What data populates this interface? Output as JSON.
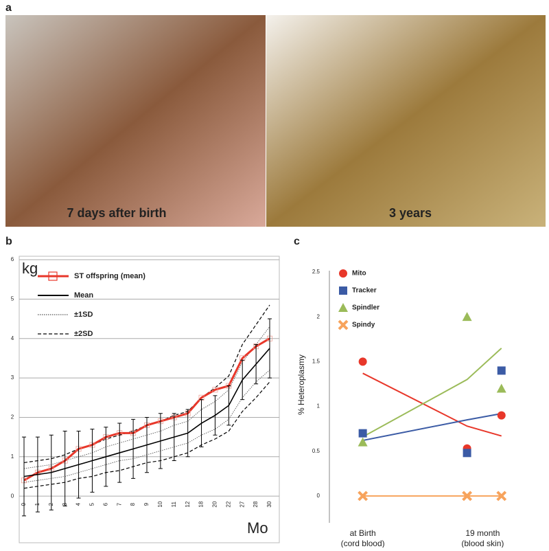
{
  "panel_labels": [
    "a",
    "b",
    "c"
  ],
  "photos": [
    {
      "caption": "7 days after birth"
    },
    {
      "caption": "3 years"
    }
  ],
  "chart_data": [
    {
      "type": "line",
      "ylabel": "kg",
      "xlabel": "Mo",
      "legend": "upper left",
      "grid": true,
      "categories": [
        "0",
        "1",
        "2",
        "3",
        "4",
        "5",
        "6",
        "7",
        "8",
        "9",
        "10",
        "11",
        "12",
        "18",
        "20",
        "22",
        "27",
        "28",
        "30"
      ],
      "ylim": [
        -1.2,
        6
      ],
      "yticks": [
        0,
        1,
        2,
        3,
        4,
        5,
        6
      ],
      "series": [
        {
          "name": "ST offspring (mean)",
          "color": "#e8372a",
          "marker": "square",
          "values": [
            0.4,
            0.6,
            0.7,
            0.9,
            1.2,
            1.3,
            1.5,
            1.6,
            1.6,
            1.8,
            1.9,
            2.0,
            2.1,
            2.5,
            2.7,
            2.8,
            3.5,
            3.8,
            4.0
          ]
        },
        {
          "name": "Mean",
          "color": "#000000",
          "values": [
            0.5,
            0.55,
            0.6,
            0.7,
            0.8,
            0.9,
            1.0,
            1.1,
            1.2,
            1.3,
            1.4,
            1.5,
            1.6,
            1.85,
            2.05,
            2.3,
            2.95,
            3.35,
            3.75
          ],
          "errors": [
            1.0,
            0.95,
            0.95,
            0.95,
            0.85,
            0.8,
            0.75,
            0.75,
            0.75,
            0.7,
            0.7,
            0.6,
            0.6,
            0.6,
            0.5,
            0.5,
            0.5,
            0.5,
            0.75
          ]
        },
        {
          "name": "±1SD",
          "color": "#555555",
          "style": "dotted",
          "upper": [
            0.7,
            0.75,
            0.8,
            0.9,
            1.0,
            1.1,
            1.25,
            1.35,
            1.45,
            1.55,
            1.65,
            1.8,
            1.9,
            2.2,
            2.4,
            2.7,
            3.4,
            3.85,
            4.3
          ],
          "lower": [
            0.35,
            0.4,
            0.45,
            0.5,
            0.6,
            0.7,
            0.8,
            0.9,
            0.95,
            1.05,
            1.15,
            1.25,
            1.35,
            1.55,
            1.7,
            1.95,
            2.5,
            2.9,
            3.2
          ]
        },
        {
          "name": "±2SD",
          "color": "#000000",
          "style": "dashed",
          "upper": [
            0.85,
            0.9,
            0.95,
            1.05,
            1.2,
            1.3,
            1.45,
            1.55,
            1.65,
            1.8,
            1.9,
            2.05,
            2.15,
            2.5,
            2.75,
            3.05,
            3.85,
            4.35,
            4.85
          ],
          "lower": [
            0.2,
            0.25,
            0.3,
            0.35,
            0.45,
            0.5,
            0.6,
            0.65,
            0.75,
            0.85,
            0.9,
            1.0,
            1.1,
            1.3,
            1.45,
            1.65,
            2.15,
            2.5,
            2.9
          ]
        }
      ]
    },
    {
      "type": "scatter",
      "ylabel": "% Heteroplasmy",
      "legend": "upper left",
      "x_labels": [
        {
          "x": 0,
          "lines": [
            "at Birth",
            "(cord blood)"
          ]
        },
        {
          "x": 1.15,
          "lines": [
            "19 month",
            "(blood      skin)"
          ]
        }
      ],
      "xlim": [
        -0.32,
        1.72
      ],
      "ylim": [
        -0.3,
        2.5
      ],
      "yticks": [
        0,
        0.5,
        1,
        1.5,
        2,
        2.5
      ],
      "x": [
        0,
        1,
        1.33
      ],
      "trend_x": [
        0,
        1,
        1.33
      ],
      "series": [
        {
          "name": "Mito",
          "color": "#e8372a",
          "marker": "circle",
          "values": [
            1.5,
            0.53,
            0.9
          ],
          "trend": [
            1.37,
            0.78,
            0.67
          ]
        },
        {
          "name": "Tracker",
          "color": "#3b5ba5",
          "marker": "square",
          "values": [
            0.7,
            0.48,
            1.4
          ],
          "trend": [
            0.62,
            0.85,
            0.92
          ]
        },
        {
          "name": "Spindler",
          "color": "#9bbb59",
          "marker": "triangle",
          "values": [
            0.6,
            2.0,
            1.2
          ],
          "trend": [
            0.66,
            1.3,
            1.65
          ]
        },
        {
          "name": "Spindy",
          "color": "#f7a35c",
          "marker": "cross",
          "values": [
            0,
            0,
            0
          ],
          "trend": [
            0,
            0,
            0
          ]
        }
      ]
    }
  ]
}
